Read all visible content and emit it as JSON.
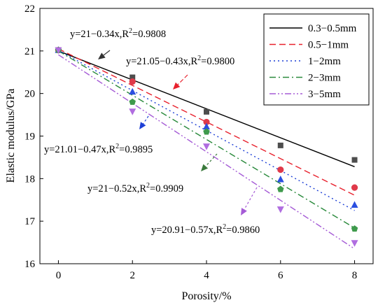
{
  "chart_data": {
    "type": "scatter",
    "xlabel": "Porosity/%",
    "ylabel": "Elastic modulus/GPa",
    "xlim": [
      -0.5,
      8.5
    ],
    "ylim": [
      16,
      22
    ],
    "xticks": [
      0,
      2,
      4,
      6,
      8
    ],
    "yticks": [
      16,
      17,
      18,
      19,
      20,
      21,
      22
    ],
    "grid": false,
    "legend_position": "top-right",
    "series": [
      {
        "name": "0.3−0.5mm",
        "color": "#000000",
        "line_style": "solid",
        "marker": "square",
        "marker_color": "#4d4d4d",
        "x": [
          0,
          2,
          4,
          6,
          8
        ],
        "y": [
          21.02,
          20.38,
          19.57,
          18.78,
          18.44
        ],
        "fit": {
          "intercept": 21,
          "slope": -0.34
        }
      },
      {
        "name": "0.5−1mm",
        "color": "#e8212d",
        "line_style": "dashed",
        "marker": "circle",
        "marker_color": "#e03a4a",
        "x": [
          0,
          2,
          4,
          6,
          8
        ],
        "y": [
          21.02,
          20.28,
          19.33,
          18.21,
          17.79
        ],
        "fit": {
          "intercept": 21.05,
          "slope": -0.43
        }
      },
      {
        "name": "1−2mm",
        "color": "#1c3fd6",
        "line_style": "dotted",
        "marker": "triangle",
        "marker_color": "#2b4fe0",
        "x": [
          0,
          2,
          4,
          6,
          8
        ],
        "y": [
          21.02,
          20.04,
          19.22,
          17.98,
          17.38
        ],
        "fit": {
          "intercept": 21.01,
          "slope": -0.47
        }
      },
      {
        "name": "2−3mm",
        "color": "#2a8a3c",
        "line_style": "dashdot",
        "marker": "pentagon",
        "marker_color": "#3f9a4c",
        "x": [
          0,
          2,
          4,
          6,
          8
        ],
        "y": [
          21.02,
          19.8,
          19.1,
          17.75,
          16.82
        ],
        "fit": {
          "intercept": 21,
          "slope": -0.52
        }
      },
      {
        "name": "3−5mm",
        "color": "#a55bd6",
        "line_style": "dashdotdot",
        "marker": "triangle-down",
        "marker_color": "#b06de0",
        "x": [
          0,
          2,
          4,
          6,
          8
        ],
        "y": [
          21.02,
          19.58,
          18.76,
          17.28,
          16.49
        ],
        "fit": {
          "intercept": 20.91,
          "slope": -0.57
        }
      }
    ],
    "annotations": [
      {
        "text": "y=21−0.34x,R",
        "sup": "2",
        "tail": "=0.9808",
        "color": "#333333"
      },
      {
        "text": "y=21.05−0.43x,R",
        "sup": "2",
        "tail": "=0.9800",
        "color": "#e8212d"
      },
      {
        "text": "y=21.01−0.47x,R",
        "sup": "2",
        "tail": "=0.9895",
        "color": "#1c3fd6"
      },
      {
        "text": "y=21−0.52x,R",
        "sup": "2",
        "tail": "=0.9909",
        "color": "#3a7a3c"
      },
      {
        "text": "y=20.91−0.57x,R",
        "sup": "2",
        "tail": "=0.9860",
        "color": "#a55bd6"
      }
    ]
  }
}
